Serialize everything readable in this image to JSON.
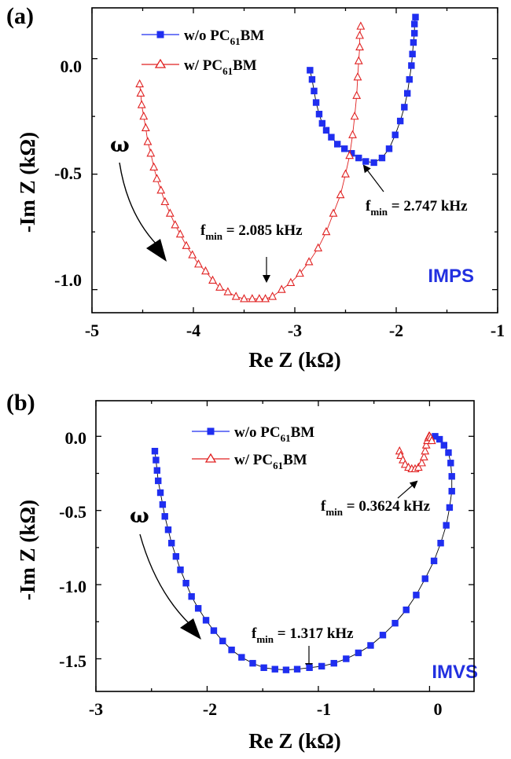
{
  "chart_data": [
    {
      "panel_label": "(a)",
      "type": "scatter",
      "xlabel": "Re Z (kΩ)",
      "ylabel": "-Im Z (kΩ)",
      "xlim": [
        -5,
        -1
      ],
      "ylim": [
        -1.1,
        0.22
      ],
      "xticks": [
        "-5",
        "-4",
        "-3",
        "-2",
        "-1"
      ],
      "xtick_values": [
        -5,
        -4,
        -3,
        -2,
        -1
      ],
      "yticks": [
        "0.0",
        "-0.5",
        "-1.0"
      ],
      "ytick_values": [
        0.0,
        -0.5,
        -1.0
      ],
      "corner_label": "IMPS",
      "omega_symbol": "ω",
      "legend_placement": "top-center",
      "series": [
        {
          "name": "w/o  PC61BM",
          "name_base": "w/o  PC",
          "name_sub": "61",
          "name_tail": "BM",
          "color": "#1f2ef0",
          "marker": "square",
          "connected": true,
          "x": [
            -2.85,
            -2.83,
            -2.81,
            -2.79,
            -2.76,
            -2.73,
            -2.69,
            -2.64,
            -2.58,
            -2.51,
            -2.44,
            -2.37,
            -2.3,
            -2.22,
            -2.14,
            -2.07,
            -2.01,
            -1.96,
            -1.92,
            -1.89,
            -1.87,
            -1.85,
            -1.84,
            -1.83,
            -1.82,
            -1.82,
            -1.81
          ],
          "y": [
            -0.05,
            -0.09,
            -0.14,
            -0.19,
            -0.24,
            -0.28,
            -0.31,
            -0.34,
            -0.37,
            -0.39,
            -0.41,
            -0.43,
            -0.445,
            -0.45,
            -0.43,
            -0.39,
            -0.33,
            -0.27,
            -0.21,
            -0.15,
            -0.09,
            -0.03,
            0.02,
            0.07,
            0.11,
            0.15,
            0.18
          ]
        },
        {
          "name": "w/   PC61BM",
          "name_base": "w/   PC",
          "name_sub": "61",
          "name_tail": "BM",
          "color": "#e02020",
          "marker": "triangle-open",
          "connected": true,
          "x": [
            -4.53,
            -4.52,
            -4.51,
            -4.49,
            -4.47,
            -4.45,
            -4.42,
            -4.39,
            -4.36,
            -4.32,
            -4.28,
            -4.23,
            -4.18,
            -4.13,
            -4.07,
            -4.01,
            -3.95,
            -3.88,
            -3.81,
            -3.74,
            -3.66,
            -3.58,
            -3.5,
            -3.42,
            -3.35,
            -3.29,
            -3.22,
            -3.13,
            -3.04,
            -2.95,
            -2.86,
            -2.77,
            -2.69,
            -2.62,
            -2.55,
            -2.5,
            -2.46,
            -2.43,
            -2.41,
            -2.39,
            -2.38,
            -2.37,
            -2.36,
            -2.36,
            -2.35
          ],
          "y": [
            -0.11,
            -0.15,
            -0.2,
            -0.25,
            -0.3,
            -0.36,
            -0.41,
            -0.47,
            -0.52,
            -0.57,
            -0.62,
            -0.67,
            -0.72,
            -0.76,
            -0.81,
            -0.85,
            -0.89,
            -0.92,
            -0.96,
            -0.99,
            -1.01,
            -1.03,
            -1.04,
            -1.04,
            -1.04,
            -1.04,
            -1.03,
            -1.0,
            -0.97,
            -0.93,
            -0.88,
            -0.82,
            -0.75,
            -0.67,
            -0.59,
            -0.5,
            -0.42,
            -0.33,
            -0.25,
            -0.16,
            -0.08,
            -0.01,
            0.05,
            0.1,
            0.14
          ]
        }
      ],
      "annotations": [
        {
          "label": "f",
          "sub": "min",
          "value": " = 2.085 kHz"
        },
        {
          "label": "f",
          "sub": "min",
          "value": " = 2.747 kHz"
        }
      ]
    },
    {
      "panel_label": "(b)",
      "type": "scatter",
      "xlabel": "Re Z (kΩ)",
      "ylabel": "-Im Z (kΩ)",
      "xlim": [
        -3,
        0.4
      ],
      "ylim": [
        -1.72,
        0.24
      ],
      "xticks": [
        "-3",
        "-2",
        "-1",
        "0"
      ],
      "xtick_values": [
        -3,
        -2,
        -1,
        0
      ],
      "yticks": [
        "0.0",
        "-0.5",
        "-1.0",
        "-1.5"
      ],
      "ytick_values": [
        0.0,
        -0.5,
        -1.0,
        -1.5
      ],
      "corner_label": "IMVS",
      "omega_symbol": "ω",
      "legend_placement": "top-center",
      "series": [
        {
          "name": "w/o PC61BM",
          "name_base": "w/o PC",
          "name_sub": "61",
          "name_tail": "BM",
          "color": "#1f2ef0",
          "marker": "square",
          "connected": true,
          "x": [
            -2.47,
            -2.46,
            -2.45,
            -2.44,
            -2.42,
            -2.4,
            -2.38,
            -2.35,
            -2.32,
            -2.28,
            -2.24,
            -2.19,
            -2.14,
            -2.08,
            -2.01,
            -1.94,
            -1.86,
            -1.78,
            -1.69,
            -1.59,
            -1.49,
            -1.39,
            -1.29,
            -1.19,
            -1.08,
            -0.97,
            -0.86,
            -0.75,
            -0.64,
            -0.53,
            -0.42,
            -0.31,
            -0.21,
            -0.12,
            -0.04,
            0.04,
            0.1,
            0.15,
            0.18,
            0.2,
            0.2,
            0.19,
            0.17,
            0.13,
            0.09,
            0.05
          ],
          "y": [
            -0.1,
            -0.16,
            -0.23,
            -0.3,
            -0.38,
            -0.46,
            -0.54,
            -0.63,
            -0.72,
            -0.81,
            -0.9,
            -0.99,
            -1.08,
            -1.16,
            -1.24,
            -1.31,
            -1.38,
            -1.44,
            -1.49,
            -1.53,
            -1.56,
            -1.57,
            -1.575,
            -1.57,
            -1.56,
            -1.55,
            -1.53,
            -1.5,
            -1.46,
            -1.41,
            -1.34,
            -1.26,
            -1.17,
            -1.07,
            -0.96,
            -0.84,
            -0.72,
            -0.6,
            -0.48,
            -0.37,
            -0.27,
            -0.18,
            -0.11,
            -0.06,
            -0.02,
            0.0
          ]
        },
        {
          "name": "w/  PC61BM",
          "name_base": "w/  PC",
          "name_sub": "61",
          "name_tail": "BM",
          "color": "#e02020",
          "marker": "triangle-open",
          "connected": true,
          "x": [
            -0.27,
            -0.26,
            -0.24,
            -0.22,
            -0.19,
            -0.16,
            -0.13,
            -0.1,
            -0.07,
            -0.05,
            -0.04,
            -0.03,
            -0.02,
            -0.01,
            -0.005,
            0.0,
            0.01,
            0.02
          ],
          "y": [
            -0.1,
            -0.13,
            -0.16,
            -0.19,
            -0.21,
            -0.22,
            -0.22,
            -0.21,
            -0.18,
            -0.14,
            -0.1,
            -0.06,
            -0.03,
            -0.01,
            0.0,
            0.0,
            -0.01,
            -0.03
          ]
        }
      ],
      "annotations": [
        {
          "label": "f",
          "sub": "min",
          "value": " = 0.3624 kHz"
        },
        {
          "label": "f",
          "sub": "min",
          "value": " = 1.317 kHz"
        }
      ]
    }
  ]
}
